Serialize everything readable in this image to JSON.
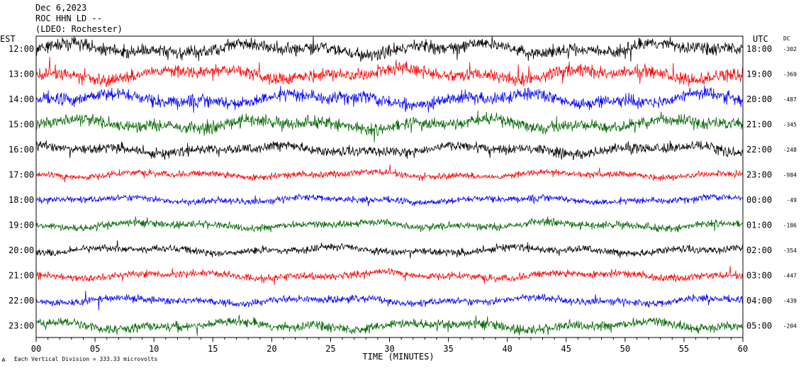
{
  "header": {
    "date": "Dec 6,2023",
    "station": "ROC HHN LD --",
    "location": "(LDEO: Rochester)"
  },
  "chart_data": {
    "type": "line",
    "title": "",
    "left_label": "EST",
    "right_label": "UTC",
    "dc_label": "DC",
    "xlabel": "TIME (MINUTES)",
    "xlim": [
      0,
      60
    ],
    "x_ticks": [
      "00",
      "05",
      "10",
      "15",
      "20",
      "25",
      "30",
      "35",
      "40",
      "45",
      "50",
      "55",
      "60"
    ],
    "footer_note": "Each Vertical Division =  333.33 microvolts",
    "traces": [
      {
        "est": "12:00",
        "utc": "18:00",
        "dc": "-302",
        "color": "#000000",
        "amplitude": 0.8
      },
      {
        "est": "13:00",
        "utc": "19:00",
        "dc": "-369",
        "color": "#ff0000",
        "amplitude": 0.8
      },
      {
        "est": "14:00",
        "utc": "20:00",
        "dc": "-487",
        "color": "#0000ff",
        "amplitude": 0.8
      },
      {
        "est": "15:00",
        "utc": "21:00",
        "dc": "-345",
        "color": "#006400",
        "amplitude": 0.75
      },
      {
        "est": "16:00",
        "utc": "22:00",
        "dc": "-248",
        "color": "#000000",
        "amplitude": 0.6
      },
      {
        "est": "17:00",
        "utc": "23:00",
        "dc": "-984",
        "color": "#ff0000",
        "amplitude": 0.4
      },
      {
        "est": "18:00",
        "utc": "00:00",
        "dc": "-49",
        "color": "#0000ff",
        "amplitude": 0.4
      },
      {
        "est": "19:00",
        "utc": "01:00",
        "dc": "-186",
        "color": "#006400",
        "amplitude": 0.45
      },
      {
        "est": "20:00",
        "utc": "02:00",
        "dc": "-354",
        "color": "#000000",
        "amplitude": 0.45
      },
      {
        "est": "21:00",
        "utc": "03:00",
        "dc": "-447",
        "color": "#ff0000",
        "amplitude": 0.45
      },
      {
        "est": "22:00",
        "utc": "04:00",
        "dc": "-439",
        "color": "#0000ff",
        "amplitude": 0.45
      },
      {
        "est": "23:00",
        "utc": "05:00",
        "dc": "-204",
        "color": "#006400",
        "amplitude": 0.6
      }
    ]
  }
}
